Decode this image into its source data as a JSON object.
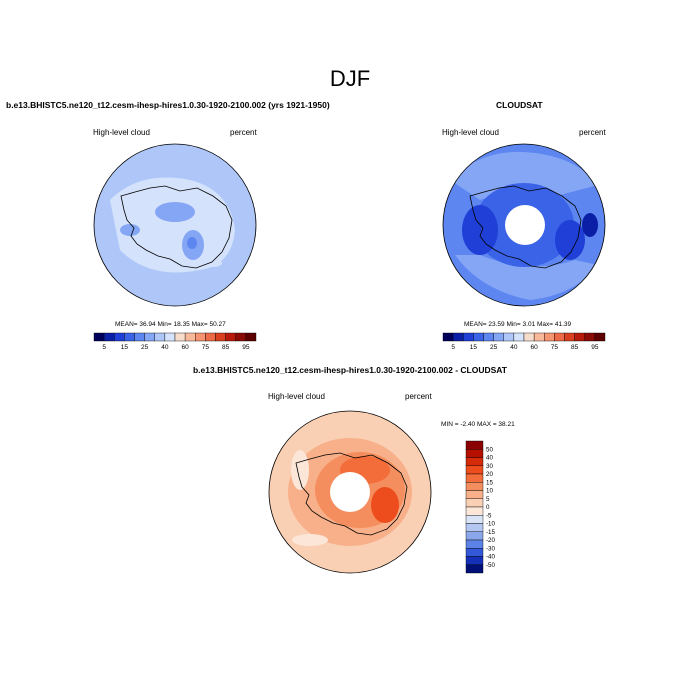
{
  "page": {
    "title": "DJF"
  },
  "panels": {
    "model": {
      "title": "b.e13.BHISTC5.ne120_t12.cesm-ihesp-hires1.0.30-1920-2100.002 (yrs 1921-1950)",
      "left_label": "High-level cloud",
      "right_label": "percent",
      "stats": "MEAN=  36.94  Min=  18.35  Max=  50.27"
    },
    "obs": {
      "title": "CLOUDSAT",
      "left_label": "High-level cloud",
      "right_label": "percent",
      "stats": "MEAN=  23.59  Min=   3.01  Max=  41.39"
    },
    "diff": {
      "title": "b.e13.BHISTC5.ne120_t12.cesm-ihesp-hires1.0.30-1920-2100.002 - CLOUDSAT",
      "left_label": "High-level cloud",
      "right_label": "percent",
      "stats": "MIN =  -2.40 MAX =  38.21"
    }
  },
  "chart_data": [
    {
      "type": "heatmap",
      "projection": "polar-stereographic-south",
      "title": "b.e13.BHISTC5.ne120_t12.cesm-ihesp-hires1.0.30-1920-2100.002 (yrs 1921-1950)",
      "variable": "High-level cloud",
      "units": "percent",
      "mean": 36.94,
      "min": 18.35,
      "max": 50.27,
      "colorbar": {
        "orientation": "horizontal",
        "levels": [
          5,
          10,
          15,
          20,
          25,
          30,
          40,
          50,
          60,
          70,
          75,
          80,
          85,
          90,
          95
        ],
        "tick_labels": [
          "5",
          "15",
          "25",
          "40",
          "60",
          "75",
          "85",
          "95"
        ],
        "colors": [
          "#00005a",
          "#0a1fa6",
          "#1f3fd6",
          "#3a63e8",
          "#5d86f0",
          "#84a6f5",
          "#aec7f8",
          "#d4e2fb",
          "#f6dccb",
          "#f7b99a",
          "#f49470",
          "#ec6a45",
          "#d8401f",
          "#b51a0a",
          "#8a0a05",
          "#5e0000"
        ]
      }
    },
    {
      "type": "heatmap",
      "projection": "polar-stereographic-south",
      "title": "CLOUDSAT",
      "variable": "High-level cloud",
      "units": "percent",
      "mean": 23.59,
      "min": 3.01,
      "max": 41.39,
      "colorbar": {
        "orientation": "horizontal",
        "levels": [
          5,
          10,
          15,
          20,
          25,
          30,
          40,
          50,
          60,
          70,
          75,
          80,
          85,
          90,
          95
        ],
        "tick_labels": [
          "5",
          "15",
          "25",
          "40",
          "60",
          "75",
          "85",
          "95"
        ],
        "colors": [
          "#00005a",
          "#0a1fa6",
          "#1f3fd6",
          "#3a63e8",
          "#5d86f0",
          "#84a6f5",
          "#aec7f8",
          "#d4e2fb",
          "#f6dccb",
          "#f7b99a",
          "#f49470",
          "#ec6a45",
          "#d8401f",
          "#b51a0a",
          "#8a0a05",
          "#5e0000"
        ]
      }
    },
    {
      "type": "heatmap",
      "projection": "polar-stereographic-south",
      "title": "b.e13.BHISTC5.ne120_t12.cesm-ihesp-hires1.0.30-1920-2100.002 - CLOUDSAT",
      "variable": "High-level cloud",
      "units": "percent",
      "min": -2.4,
      "max": 38.21,
      "colorbar": {
        "orientation": "vertical",
        "levels": [
          -50,
          -40,
          -30,
          -20,
          -15,
          -10,
          -5,
          0,
          5,
          10,
          15,
          20,
          30,
          40,
          50
        ],
        "tick_labels": [
          "50",
          "40",
          "30",
          "20",
          "15",
          "10",
          "5",
          "0",
          "-5",
          "-10",
          "-15",
          "-20",
          "-30",
          "-40",
          "-50"
        ],
        "colors": [
          "#8a0000",
          "#b50f00",
          "#d62b08",
          "#ed4d1c",
          "#f26d3a",
          "#f58e5e",
          "#f8b08a",
          "#fad0b5",
          "#fbe6d8",
          "#dbe4f7",
          "#b3c7f2",
          "#8aa7ec",
          "#5d82e6",
          "#3459d8",
          "#1530b8",
          "#001077"
        ]
      }
    }
  ]
}
